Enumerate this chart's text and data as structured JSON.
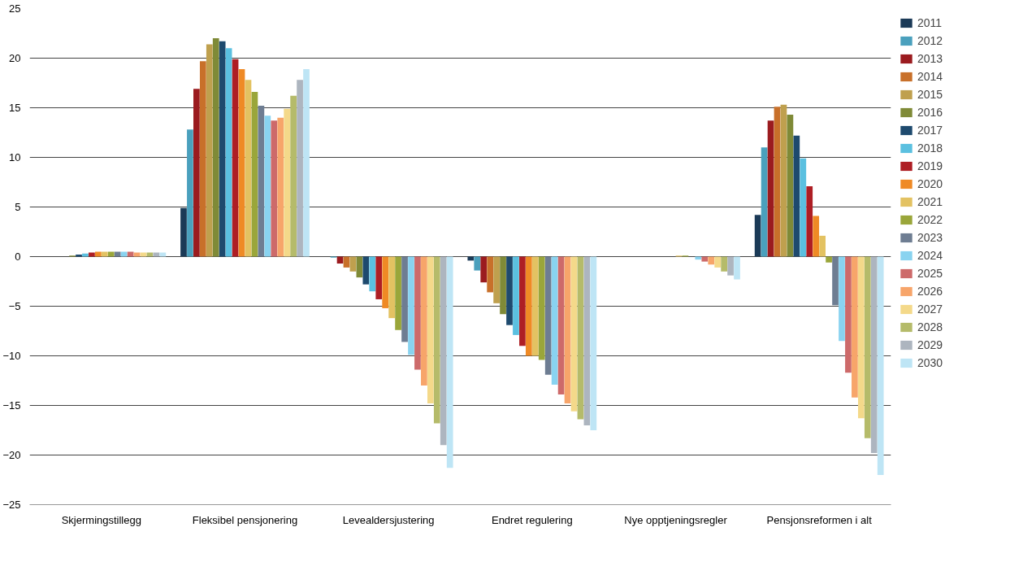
{
  "chart_data": {
    "type": "bar",
    "categories": [
      "Skjermingstillegg",
      "Fleksibel pensjonering",
      "Levealdersjustering",
      "Endret regulering",
      "Nye opptjeningsregler",
      "Pensjonsreformen i alt"
    ],
    "ylim": [
      -25,
      25
    ],
    "yticks": [
      -25,
      -20,
      -15,
      -10,
      -5,
      0,
      5,
      10,
      15,
      20,
      25
    ],
    "grid": "y",
    "legend": "right",
    "series": [
      {
        "name": "2011",
        "color": "#1b3a57",
        "values": [
          0,
          4.9,
          0,
          -0.4,
          0,
          4.2
        ]
      },
      {
        "name": "2012",
        "color": "#4aa0bd",
        "values": [
          0,
          12.8,
          -0.1,
          -1.4,
          0,
          11.0
        ]
      },
      {
        "name": "2013",
        "color": "#9b1b1f",
        "values": [
          0,
          16.9,
          -0.7,
          -2.6,
          0,
          13.7
        ]
      },
      {
        "name": "2014",
        "color": "#c8702a",
        "values": [
          0,
          19.7,
          -1.1,
          -3.6,
          0,
          15.1
        ]
      },
      {
        "name": "2015",
        "color": "#bfa04e",
        "values": [
          0,
          21.4,
          -1.5,
          -4.7,
          0,
          15.3
        ]
      },
      {
        "name": "2016",
        "color": "#7f8a37",
        "values": [
          0.1,
          22.0,
          -2.1,
          -5.8,
          0,
          14.3
        ]
      },
      {
        "name": "2017",
        "color": "#1e4a6e",
        "values": [
          0.2,
          21.7,
          -2.8,
          -6.9,
          0,
          12.2
        ]
      },
      {
        "name": "2018",
        "color": "#5bc0e0",
        "values": [
          0.3,
          21.0,
          -3.5,
          -7.9,
          0,
          9.9
        ]
      },
      {
        "name": "2019",
        "color": "#ae1e24",
        "values": [
          0.4,
          19.9,
          -4.3,
          -9.0,
          0,
          7.1
        ]
      },
      {
        "name": "2020",
        "color": "#ef8a25",
        "values": [
          0.5,
          18.9,
          -5.2,
          -10.0,
          0,
          4.1
        ]
      },
      {
        "name": "2021",
        "color": "#e3c262",
        "values": [
          0.5,
          17.8,
          -6.2,
          -10.0,
          0.1,
          2.1
        ]
      },
      {
        "name": "2022",
        "color": "#9aa63a",
        "values": [
          0.5,
          16.6,
          -7.4,
          -10.4,
          0.1,
          -0.6
        ]
      },
      {
        "name": "2023",
        "color": "#6e7d92",
        "values": [
          0.5,
          15.2,
          -8.6,
          -11.9,
          0,
          -4.9
        ]
      },
      {
        "name": "2024",
        "color": "#89d3f0",
        "values": [
          0.5,
          14.2,
          -9.9,
          -12.9,
          -0.3,
          -8.5
        ]
      },
      {
        "name": "2025",
        "color": "#cd6a6a",
        "values": [
          0.5,
          13.7,
          -11.4,
          -13.9,
          -0.5,
          -11.7
        ]
      },
      {
        "name": "2026",
        "color": "#f7a56a",
        "values": [
          0.4,
          14.0,
          -13.0,
          -14.8,
          -0.8,
          -14.2
        ]
      },
      {
        "name": "2027",
        "color": "#f4d98a",
        "values": [
          0.4,
          14.9,
          -14.8,
          -15.6,
          -1.1,
          -16.3
        ]
      },
      {
        "name": "2028",
        "color": "#b5bb6a",
        "values": [
          0.4,
          16.2,
          -16.8,
          -16.4,
          -1.5,
          -18.3
        ]
      },
      {
        "name": "2029",
        "color": "#adb5bf",
        "values": [
          0.4,
          17.8,
          -19.0,
          -17.0,
          -1.9,
          -19.8
        ]
      },
      {
        "name": "2030",
        "color": "#bee5f5",
        "values": [
          0.4,
          18.9,
          -21.3,
          -17.5,
          -2.3,
          -22.0
        ]
      }
    ]
  }
}
